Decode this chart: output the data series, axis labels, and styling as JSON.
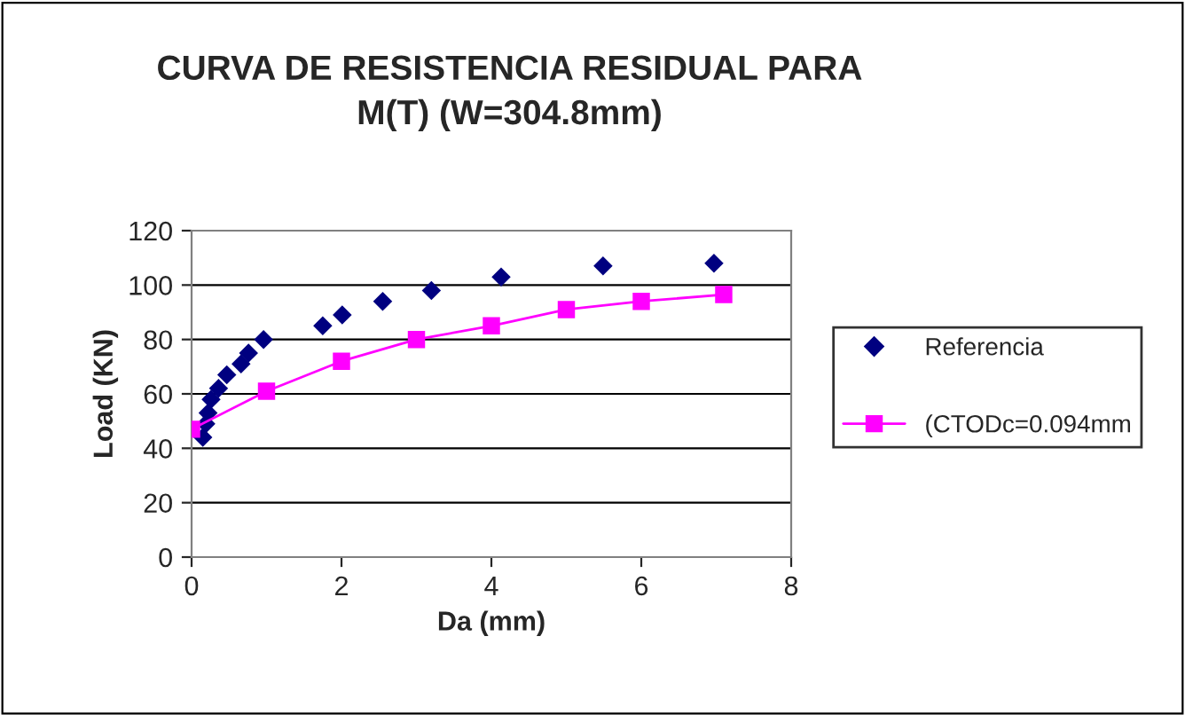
{
  "chart_data": {
    "type": "scatter",
    "title": "CURVA DE RESISTENCIA RESIDUAL PARA\nM(T) (W=304.8mm)",
    "xlabel": "Da (mm)",
    "ylabel": "Load (KN)",
    "series": [
      {
        "name": "Referencia",
        "marker": "diamond",
        "color": "#000080",
        "x": [
          0.15,
          0.19,
          0.22,
          0.26,
          0.36,
          0.47,
          0.66,
          0.76,
          0.96,
          1.75,
          2.01,
          2.55,
          3.2,
          4.13,
          5.49,
          6.97
        ],
        "values": [
          44,
          49,
          53,
          58,
          62,
          67,
          71,
          75,
          80,
          85,
          89,
          94,
          98,
          103,
          107,
          108
        ]
      },
      {
        "name": "(CTODc=0.094mm",
        "type": "line",
        "marker": "square",
        "color": "#ff00ff",
        "x": [
          0,
          1,
          2,
          3,
          4,
          5,
          6,
          7.1
        ],
        "values": [
          47,
          61,
          72,
          80,
          85,
          91,
          94,
          96.5
        ]
      }
    ],
    "xlim": [
      0,
      8
    ],
    "xticks": [
      0,
      2,
      4,
      6,
      8
    ],
    "ylim": [
      0,
      120
    ],
    "yticks": [
      0,
      20,
      40,
      60,
      80,
      100,
      120
    ],
    "grid": "y",
    "legend": "right"
  }
}
